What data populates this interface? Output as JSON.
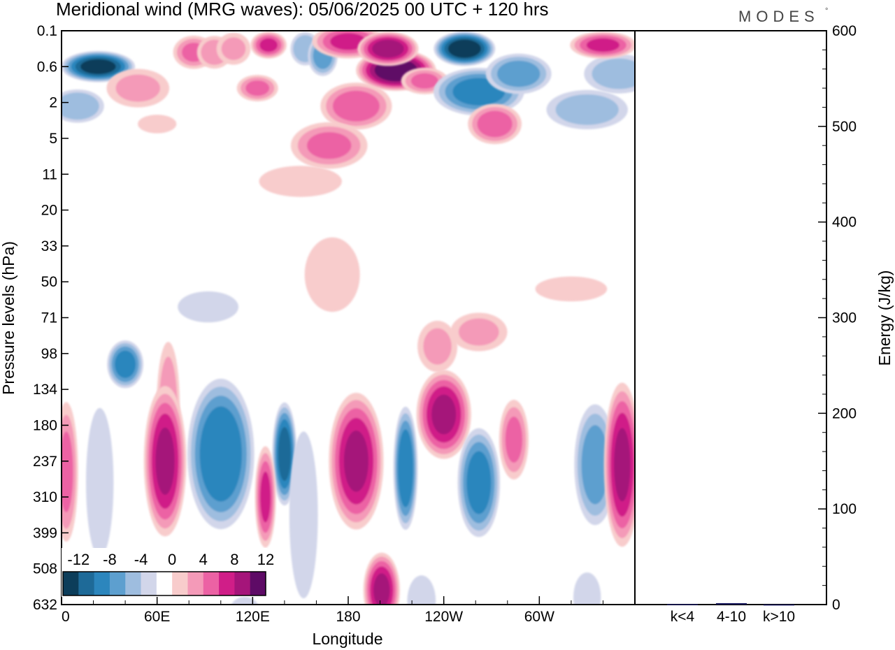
{
  "title": "Meridional wind (MRG waves):  05/06/2025  00 UTC  + 120 hrs",
  "logo": {
    "text": "MODES",
    "mark": "°"
  },
  "chart_data": [
    {
      "type": "heatmap",
      "variable": "Meridional wind (MRG waves)",
      "xlabel": "Longitude",
      "ylabel": "Pressure levels (hPa)",
      "x_ticks": [
        "0",
        "60E",
        "120E",
        "180",
        "120W",
        "60W"
      ],
      "x_tick_degrees": [
        0,
        60,
        120,
        180,
        240,
        300
      ],
      "xlim": [
        0,
        360
      ],
      "y_ticks": [
        "0.1",
        "0.6",
        "2",
        "5",
        "11",
        "20",
        "33",
        "50",
        "71",
        "98",
        "134",
        "180",
        "237",
        "310",
        "399",
        "508",
        "632"
      ],
      "colorbar": {
        "labels": [
          "-12",
          "-8",
          "-4",
          "0",
          "4",
          "8",
          "12"
        ],
        "levels": [
          -14,
          -12,
          -10,
          -8,
          -6,
          -4,
          -2,
          2,
          4,
          6,
          8,
          10,
          12,
          14
        ],
        "colors": [
          "#0c3d5a",
          "#1e6a98",
          "#2c86bd",
          "#5d9fcf",
          "#9ebddf",
          "#d2d6ea",
          "#ffffff",
          "#f8cccc",
          "#f49ab8",
          "#ec62a4",
          "#d01e88",
          "#a5157a",
          "#5e0b66"
        ]
      },
      "features": [
        {
          "lon": 23,
          "level": 1,
          "value": -13,
          "w": 24,
          "h": 0.45
        },
        {
          "lon": 10,
          "level": 2.1,
          "value": -6,
          "w": 18,
          "h": 0.5
        },
        {
          "lon": 48,
          "level": 1.6,
          "value": 4,
          "w": 22,
          "h": 0.6
        },
        {
          "lon": 60,
          "level": 2.6,
          "value": 3,
          "w": 14,
          "h": 0.3
        },
        {
          "lon": 83,
          "level": 0.6,
          "value": 6,
          "w": 14,
          "h": 0.5
        },
        {
          "lon": 96,
          "level": 0.6,
          "value": 5,
          "w": 12,
          "h": 0.5
        },
        {
          "lon": 108,
          "level": 0.5,
          "value": 4,
          "w": 12,
          "h": 0.5
        },
        {
          "lon": 130,
          "level": 0.4,
          "value": 8,
          "w": 12,
          "h": 0.4
        },
        {
          "lon": 123,
          "level": 1.6,
          "value": 6,
          "w": 14,
          "h": 0.4
        },
        {
          "lon": 153,
          "level": 0.5,
          "value": -6,
          "w": 10,
          "h": 0.5
        },
        {
          "lon": 164,
          "level": 0.7,
          "value": -7,
          "w": 10,
          "h": 0.6
        },
        {
          "lon": 180,
          "level": 0.3,
          "value": 8,
          "w": 24,
          "h": 0.5
        },
        {
          "lon": 185,
          "level": 2.1,
          "value": 7,
          "w": 24,
          "h": 0.7
        },
        {
          "lon": 168,
          "level": 3.2,
          "value": 6,
          "w": 26,
          "h": 0.7
        },
        {
          "lon": 150,
          "level": 4.2,
          "value": 3,
          "w": 30,
          "h": 0.5
        },
        {
          "lon": 210,
          "level": 1.1,
          "value": 14,
          "w": 26,
          "h": 0.6
        },
        {
          "lon": 205,
          "level": 0.5,
          "value": 11,
          "w": 20,
          "h": 0.5
        },
        {
          "lon": 228,
          "level": 1.4,
          "value": 6,
          "w": 16,
          "h": 0.4
        },
        {
          "lon": 253,
          "level": 0.5,
          "value": -14,
          "w": 20,
          "h": 0.5
        },
        {
          "lon": 262,
          "level": 1.7,
          "value": -9,
          "w": 30,
          "h": 0.7
        },
        {
          "lon": 287,
          "level": 1.2,
          "value": -7,
          "w": 22,
          "h": 0.6
        },
        {
          "lon": 272,
          "level": 2.6,
          "value": 7,
          "w": 18,
          "h": 0.6
        },
        {
          "lon": 330,
          "level": 2.2,
          "value": -5,
          "w": 28,
          "h": 0.6
        },
        {
          "lon": 350,
          "level": 1.2,
          "value": -5,
          "w": 24,
          "h": 0.6
        },
        {
          "lon": 340,
          "level": 0.4,
          "value": 8,
          "w": 22,
          "h": 0.4
        },
        {
          "lon": 170,
          "level": 6.8,
          "value": 3,
          "w": 20,
          "h": 1.2
        },
        {
          "lon": 92,
          "level": 7.7,
          "value": -3,
          "w": 22,
          "h": 0.5
        },
        {
          "lon": 320,
          "level": 7.2,
          "value": 3,
          "w": 26,
          "h": 0.4
        },
        {
          "lon": 40,
          "level": 9.3,
          "value": -9,
          "w": 12,
          "h": 0.7
        },
        {
          "lon": 67,
          "level": 10.5,
          "value": 5,
          "w": 8,
          "h": 2.0
        },
        {
          "lon": 65,
          "level": 12,
          "value": 10,
          "w": 14,
          "h": 2.2
        },
        {
          "lon": 100,
          "level": 11.8,
          "value": -10,
          "w": 22,
          "h": 2.2
        },
        {
          "lon": 140,
          "level": 11.8,
          "value": -11,
          "w": 8,
          "h": 1.5
        },
        {
          "lon": 128,
          "level": 13,
          "value": 8,
          "w": 7,
          "h": 1.5
        },
        {
          "lon": 152,
          "level": 13.5,
          "value": -4,
          "w": 10,
          "h": 2.6
        },
        {
          "lon": 185,
          "level": 12,
          "value": 10,
          "w": 18,
          "h": 2.0
        },
        {
          "lon": 216,
          "level": 12.2,
          "value": -10,
          "w": 8,
          "h": 1.8
        },
        {
          "lon": 240,
          "level": 10.7,
          "value": 10,
          "w": 18,
          "h": 1.3
        },
        {
          "lon": 236,
          "level": 8.8,
          "value": 4,
          "w": 14,
          "h": 0.8
        },
        {
          "lon": 262,
          "level": 8.4,
          "value": 4,
          "w": 20,
          "h": 0.6
        },
        {
          "lon": 262,
          "level": 12.6,
          "value": -9,
          "w": 14,
          "h": 1.6
        },
        {
          "lon": 284,
          "level": 11.4,
          "value": 6,
          "w": 10,
          "h": 1.2
        },
        {
          "lon": 335,
          "level": 12.1,
          "value": -7,
          "w": 14,
          "h": 1.8
        },
        {
          "lon": 352,
          "level": 12.1,
          "value": 10,
          "w": 12,
          "h": 2.4
        },
        {
          "lon": 3,
          "level": 12.3,
          "value": 6,
          "w": 8,
          "h": 2.1
        },
        {
          "lon": 24,
          "level": 12.6,
          "value": -3,
          "w": 10,
          "h": 2.4
        },
        {
          "lon": 201,
          "level": 15.6,
          "value": 10,
          "w": 12,
          "h": 1.1
        },
        {
          "lon": 226,
          "level": 15.9,
          "value": -4,
          "w": 10,
          "h": 0.8
        },
        {
          "lon": 115,
          "level": 16.3,
          "value": -3,
          "w": 12,
          "h": 0.6
        },
        {
          "lon": 330,
          "level": 15.8,
          "value": -3,
          "w": 10,
          "h": 0.8
        }
      ]
    },
    {
      "type": "bar",
      "categories": [
        "k<4",
        "4-10",
        "k>10"
      ],
      "values": [
        0.5,
        1.5,
        0.1
      ],
      "ylabel": "Energy (J/kg)",
      "ylim": [
        0,
        600
      ],
      "y_ticks": [
        "0",
        "100",
        "200",
        "300",
        "400",
        "500",
        "600"
      ],
      "bar_color": "#1a1a5e"
    }
  ]
}
